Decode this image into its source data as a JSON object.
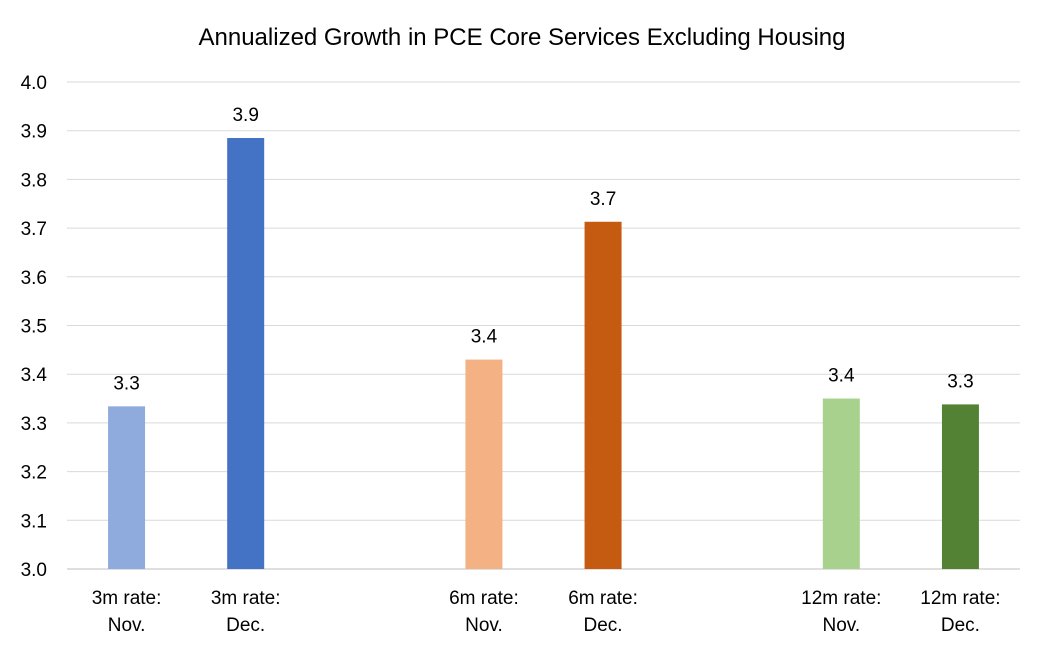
{
  "chart_data": {
    "type": "bar",
    "title": "Annualized Growth in PCE Core Services Excluding Housing",
    "xlabel": "",
    "ylabel": "",
    "ylim": [
      3.0,
      4.0
    ],
    "yticks": [
      "3.0",
      "3.1",
      "3.2",
      "3.3",
      "3.4",
      "3.5",
      "3.6",
      "3.7",
      "3.8",
      "3.9",
      "4.0"
    ],
    "grid": true,
    "legend": "none",
    "categories": [
      [
        "3m rate:",
        "Nov."
      ],
      [
        "3m rate:",
        "Dec."
      ],
      null,
      [
        "6m rate:",
        "Nov."
      ],
      [
        "6m rate:",
        "Dec."
      ],
      null,
      [
        "12m rate:",
        "Nov."
      ],
      [
        "12m rate:",
        "Dec."
      ]
    ],
    "values": [
      3.334,
      3.885,
      null,
      3.43,
      3.713,
      null,
      3.35,
      3.338
    ],
    "data_labels": [
      "3.3",
      "3.9",
      null,
      "3.4",
      "3.7",
      null,
      "3.4",
      "3.3"
    ],
    "colors": [
      "#8faadc",
      "#4472c4",
      null,
      "#f4b183",
      "#c55a11",
      null,
      "#a9d18e",
      "#548235"
    ]
  }
}
